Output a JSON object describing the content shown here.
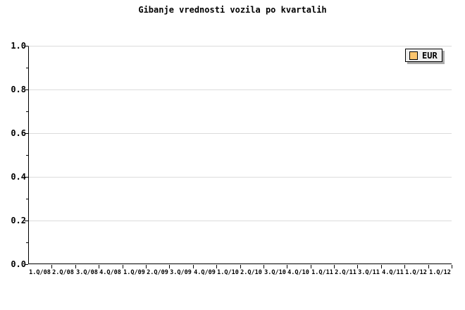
{
  "chart_data": {
    "type": "line",
    "title": "Gibanje vrednosti vozila po kvartalih",
    "categories": [
      "1.Q/08",
      "2.Q/08",
      "3.Q/08",
      "4.Q/08",
      "1.Q/09",
      "2.Q/09",
      "3.Q/09",
      "4.Q/09",
      "1.Q/10",
      "2.Q/10",
      "3.Q/10",
      "4.Q/10",
      "1.Q/11",
      "2.Q/11",
      "3.Q/11",
      "4.Q/11",
      "1.Q/12",
      "1.Q/12"
    ],
    "series": [
      {
        "name": "EUR",
        "color": "#fbc56e",
        "values": []
      }
    ],
    "xlabel": "",
    "ylabel": "",
    "ylim": [
      0.0,
      1.0
    ],
    "yticks": [
      "1.0",
      "0.8",
      "0.6",
      "0.4",
      "0.2",
      "0.0"
    ],
    "ytick_values": [
      1.0,
      0.8,
      0.6,
      0.4,
      0.2,
      0.0
    ],
    "minor_ytick_values": [
      0.9,
      0.7,
      0.5,
      0.3,
      0.1
    ],
    "grid": true,
    "gridline_color": "#dcdcdc",
    "axis_color": "#000000",
    "legend_position": "top-right",
    "plot_is_empty": true
  },
  "legend": {
    "entries": [
      {
        "label": "EUR",
        "swatch_color": "#fbc56e"
      }
    ],
    "background": "#efefef",
    "shadow_color": "#aaaaaa"
  }
}
